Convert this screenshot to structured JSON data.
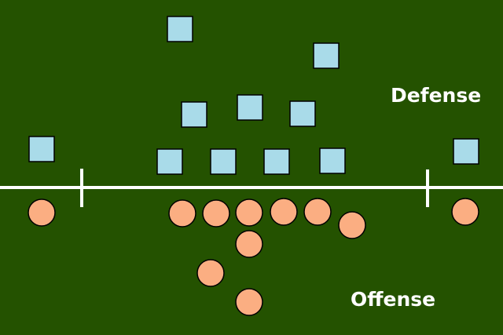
{
  "labels": {
    "defense": "Defense",
    "offense": "Offense"
  }
}
